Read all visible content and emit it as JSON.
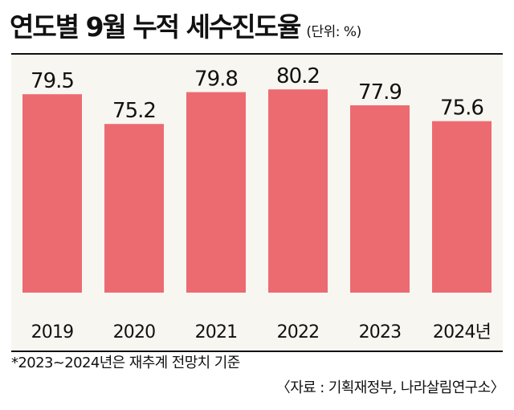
{
  "colors": {
    "bar": "#ec6b71",
    "text": "#111111",
    "plot_background": "#f8f6f1"
  },
  "chart_data": {
    "type": "bar",
    "title": "연도별 9월 누적 세수진도율",
    "unit": "(단위: %)",
    "categories": [
      "2019",
      "2020",
      "2021",
      "2022",
      "2023",
      "2024년"
    ],
    "values": [
      79.5,
      75.2,
      79.8,
      80.2,
      77.9,
      75.6
    ],
    "data_labels": [
      "79.5",
      "75.2",
      "79.8",
      "80.2",
      "77.9",
      "75.6"
    ],
    "ylim": [
      50.8,
      81.5
    ],
    "grid": false,
    "legend": "none"
  },
  "footnote": "*2023~2024년은 재추계 전망치 기준",
  "source": "〈자료 : 기획재정부, 나라살림연구소〉"
}
